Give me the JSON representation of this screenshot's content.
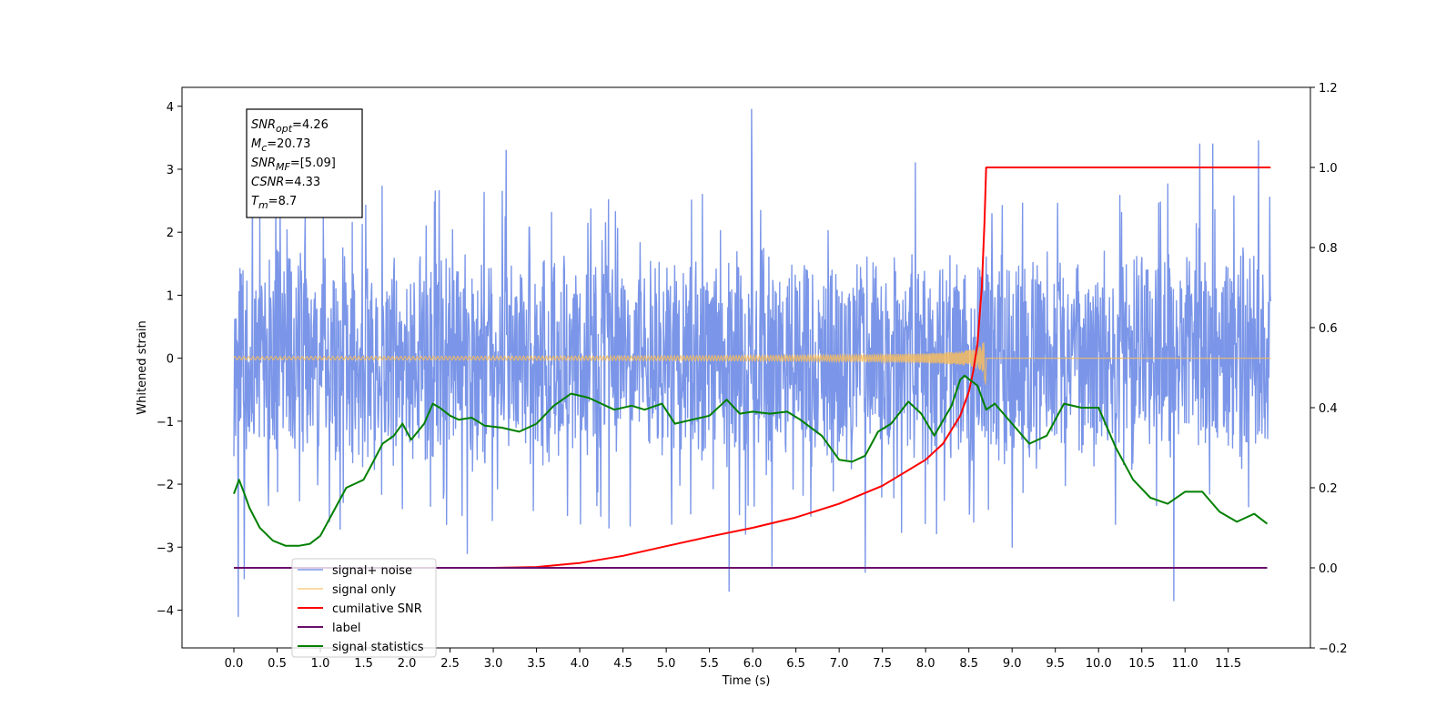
{
  "chart_data": {
    "type": "line",
    "title": "",
    "xlabel": "Time (s)",
    "ylabel": "Whitened strain",
    "y2label": "",
    "xlim": [
      -0.6,
      12.45
    ],
    "ylim": [
      -4.6,
      4.3
    ],
    "y2lim": [
      -0.2,
      1.2
    ],
    "x_ticks": [
      0.0,
      0.5,
      1.0,
      1.5,
      2.0,
      2.5,
      3.0,
      3.5,
      4.0,
      4.5,
      5.0,
      5.5,
      6.0,
      6.5,
      7.0,
      7.5,
      8.0,
      8.5,
      9.0,
      9.5,
      10.0,
      10.5,
      11.0,
      11.5
    ],
    "x_tick_labels": [
      "0.0",
      "0.5",
      "1.0",
      "1.5",
      "2.0",
      "2.5",
      "3.0",
      "3.5",
      "4.0",
      "4.5",
      "5.0",
      "5.5",
      "6.0",
      "6.5",
      "7.0",
      "7.5",
      "8.0",
      "8.5",
      "9.0",
      "9.5",
      "10.0",
      "10.5",
      "11.0",
      "11.5"
    ],
    "y_ticks": [
      -4,
      -3,
      -2,
      -1,
      0,
      1,
      2,
      3,
      4
    ],
    "y_tick_labels": [
      "−4",
      "−3",
      "−2",
      "−1",
      "0",
      "1",
      "2",
      "3",
      "4"
    ],
    "y2_ticks": [
      -0.2,
      0.0,
      0.2,
      0.4,
      0.6,
      0.8,
      1.0,
      1.2
    ],
    "y2_tick_labels": [
      "−0.2",
      "0.0",
      "0.2",
      "0.4",
      "0.6",
      "0.8",
      "1.0",
      "1.2"
    ],
    "grid": false,
    "legend_position": "lower-left",
    "annotation": [
      {
        "main": "SNR",
        "sub": "opt",
        "value": "=4.26"
      },
      {
        "main": "M",
        "sub": "c",
        "value": "=20.73"
      },
      {
        "main": "SNR",
        "sub": "MF",
        "value": "=[5.09]"
      },
      {
        "main": "CSNR",
        "sub": "",
        "value": "=4.33"
      },
      {
        "main": "T",
        "sub": "m",
        "value": "=8.7"
      }
    ],
    "series": [
      {
        "name": "signal+ noise",
        "axis": "left",
        "color": "#7b96e8",
        "style": "noise",
        "x_range": [
          0.0,
          11.99
        ],
        "typical_abs_max": 1.9,
        "peaks": [
          [
            0.05,
            -4.1
          ],
          [
            0.12,
            -3.5
          ],
          [
            0.3,
            2.3
          ],
          [
            2.7,
            -3.1
          ],
          [
            3.15,
            3.3
          ],
          [
            5.73,
            -3.7
          ],
          [
            5.99,
            3.95
          ],
          [
            6.22,
            -3.3
          ],
          [
            7.3,
            -3.4
          ],
          [
            7.88,
            3.1
          ],
          [
            9.0,
            -3.0
          ],
          [
            10.87,
            -3.85
          ],
          [
            11.17,
            3.4
          ],
          [
            11.32,
            3.4
          ],
          [
            11.85,
            3.45
          ]
        ]
      },
      {
        "name": "signal only",
        "axis": "left",
        "color": "#f5bc60",
        "style": "chirp",
        "x_range": [
          0.0,
          11.99
        ],
        "merger_time": 8.7,
        "peak_amplitude": 0.9
      },
      {
        "name": "cumilative SNR",
        "axis": "right",
        "color": "#ff0000",
        "x": [
          0.0,
          3.0,
          3.5,
          4.0,
          4.5,
          5.0,
          5.5,
          6.0,
          6.5,
          7.0,
          7.5,
          8.0,
          8.2,
          8.4,
          8.5,
          8.55,
          8.6,
          8.65,
          8.68,
          8.7,
          9.0,
          11.99
        ],
        "values": [
          0.0,
          0.0,
          0.002,
          0.012,
          0.03,
          0.054,
          0.078,
          0.1,
          0.126,
          0.16,
          0.205,
          0.27,
          0.31,
          0.38,
          0.44,
          0.49,
          0.56,
          0.7,
          0.86,
          1.0,
          1.0,
          1.0
        ]
      },
      {
        "name": "label",
        "axis": "right",
        "color": "#6a0f6a",
        "x": [
          0.0,
          11.95
        ],
        "values": [
          0.0,
          0.0
        ]
      },
      {
        "name": "signal statistics",
        "axis": "right",
        "color": "#008000",
        "x": [
          0.0,
          0.06,
          0.13,
          0.18,
          0.3,
          0.45,
          0.6,
          0.75,
          0.88,
          1.0,
          1.15,
          1.3,
          1.4,
          1.5,
          1.6,
          1.72,
          1.85,
          1.95,
          2.05,
          2.2,
          2.3,
          2.38,
          2.5,
          2.6,
          2.75,
          2.9,
          3.1,
          3.3,
          3.5,
          3.7,
          3.9,
          4.1,
          4.25,
          4.4,
          4.6,
          4.75,
          4.95,
          5.1,
          5.3,
          5.5,
          5.7,
          5.85,
          6.0,
          6.2,
          6.4,
          6.55,
          6.8,
          7.0,
          7.15,
          7.3,
          7.45,
          7.6,
          7.8,
          7.95,
          8.1,
          8.3,
          8.4,
          8.45,
          8.6,
          8.7,
          8.8,
          9.0,
          9.2,
          9.4,
          9.6,
          9.8,
          10.0,
          10.2,
          10.4,
          10.6,
          10.8,
          11.0,
          11.2,
          11.4,
          11.6,
          11.8,
          11.95
        ],
        "values": [
          0.185,
          0.22,
          0.18,
          0.15,
          0.1,
          0.068,
          0.055,
          0.055,
          0.06,
          0.08,
          0.14,
          0.2,
          0.21,
          0.22,
          0.26,
          0.31,
          0.33,
          0.36,
          0.32,
          0.36,
          0.41,
          0.4,
          0.38,
          0.37,
          0.375,
          0.355,
          0.35,
          0.34,
          0.36,
          0.405,
          0.435,
          0.425,
          0.41,
          0.395,
          0.405,
          0.395,
          0.41,
          0.36,
          0.37,
          0.38,
          0.42,
          0.385,
          0.39,
          0.385,
          0.39,
          0.37,
          0.33,
          0.27,
          0.265,
          0.28,
          0.34,
          0.36,
          0.415,
          0.385,
          0.33,
          0.405,
          0.47,
          0.48,
          0.455,
          0.395,
          0.41,
          0.36,
          0.31,
          0.33,
          0.41,
          0.4,
          0.4,
          0.3,
          0.22,
          0.175,
          0.16,
          0.19,
          0.19,
          0.14,
          0.115,
          0.135,
          0.11
        ]
      }
    ]
  }
}
